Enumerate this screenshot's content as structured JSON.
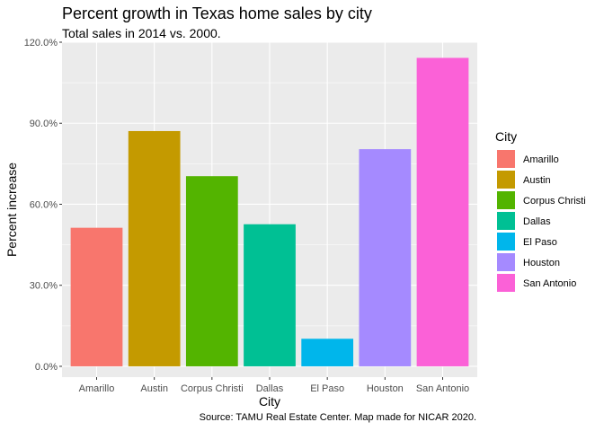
{
  "chart_data": {
    "type": "bar",
    "title": "Percent growth in Texas home sales by city",
    "subtitle": "Total sales in 2014 vs. 2000.",
    "caption": "Source: TAMU Real Estate Center. Map made for NICAR 2020.",
    "xlabel": "City",
    "ylabel": "Percent increase",
    "categories": [
      "Amarillo",
      "Austin",
      "Corpus Christi",
      "Dallas",
      "El Paso",
      "Houston",
      "San Antonio"
    ],
    "values": [
      51.3,
      87.1,
      70.4,
      52.6,
      10.2,
      80.4,
      114.2
    ],
    "colors": [
      "#F8766D",
      "#C49A00",
      "#53B400",
      "#00C094",
      "#00B6EB",
      "#A58AFF",
      "#FB61D7"
    ],
    "ylim": [
      -4,
      120
    ],
    "yticks": [
      0,
      30,
      60,
      90,
      120
    ],
    "ytick_labels": [
      "0.0%",
      "30.0%",
      "60.0%",
      "90.0%",
      "120.0%"
    ],
    "grid": true,
    "legend": {
      "title": "City",
      "placement": "right"
    }
  }
}
